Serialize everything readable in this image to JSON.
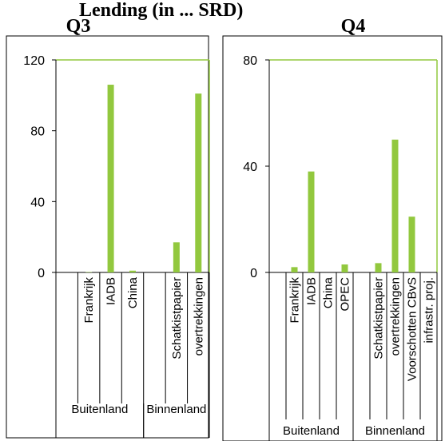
{
  "header": {
    "partial_title": "Lending (in ... SRD)"
  },
  "chart_data": [
    {
      "type": "bar",
      "title": "Q3",
      "ylim": [
        0,
        120
      ],
      "yticks": [
        0,
        40,
        80,
        120
      ],
      "categories": [
        "",
        "Frankrijk",
        "IADB",
        "China",
        "",
        "Schatkistpapier",
        "overtrekkingen"
      ],
      "values": [
        0,
        0.2,
        106,
        1,
        0,
        17,
        101
      ],
      "groups": [
        {
          "label": "Buitenland",
          "start": 0,
          "end": 4
        },
        {
          "label": "Binnenland",
          "start": 4,
          "end": 7
        }
      ],
      "bar_color": "#92c83e",
      "axis_color": "#92c83e",
      "grid": false,
      "legend": "none"
    },
    {
      "type": "bar",
      "title": "Q4",
      "ylim": [
        0,
        80
      ],
      "yticks": [
        0,
        40,
        80
      ],
      "categories": [
        "",
        "Frankrijk",
        "IADB",
        "China",
        "OPEC",
        "",
        "Schatkistpapier",
        "overtrekkingen",
        "Voorschotten CBvS",
        "infrastr. proj."
      ],
      "values": [
        0,
        2,
        38,
        0,
        3,
        0,
        3.5,
        50,
        21,
        0
      ],
      "groups": [
        {
          "label": "Buitenland",
          "start": 0,
          "end": 5
        },
        {
          "label": "Binnenland",
          "start": 5,
          "end": 10
        }
      ],
      "bar_color": "#92c83e",
      "axis_color": "#92c83e",
      "grid": false,
      "legend": "none"
    }
  ]
}
